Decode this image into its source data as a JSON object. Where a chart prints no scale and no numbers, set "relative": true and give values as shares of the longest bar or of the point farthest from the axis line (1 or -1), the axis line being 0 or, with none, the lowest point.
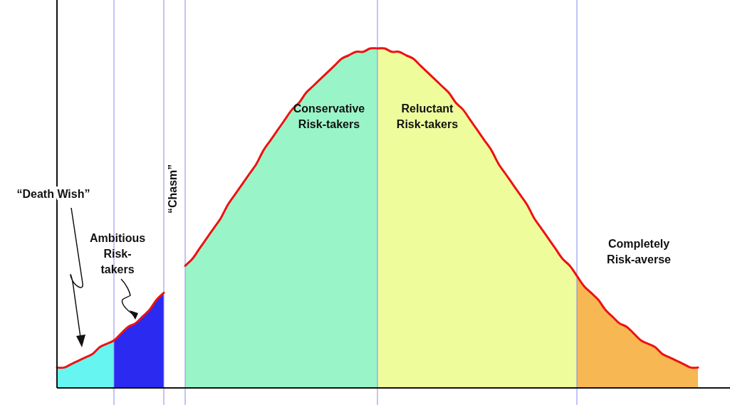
{
  "chart_data": {
    "type": "area",
    "relative": true,
    "categories": [
      null,
      null,
      null,
      null,
      null,
      null,
      null,
      null,
      null,
      null,
      null,
      null,
      null,
      null,
      null,
      null,
      null,
      null,
      null,
      null,
      null,
      null,
      null,
      null,
      null,
      null,
      null,
      null,
      null,
      null,
      null,
      null,
      null,
      null,
      null,
      null,
      null,
      null,
      null,
      null,
      null,
      null,
      null,
      null,
      null,
      null,
      null,
      null,
      null,
      null,
      null,
      null,
      null,
      null,
      null,
      null,
      null,
      null,
      null,
      null,
      null,
      null,
      null,
      null,
      null,
      null,
      null,
      null,
      null,
      null,
      null,
      null,
      null,
      null,
      null,
      null,
      null,
      null,
      null,
      null,
      null,
      null,
      null,
      null,
      null,
      null,
      null,
      null,
      null,
      null,
      null,
      null,
      null,
      null,
      null
    ],
    "series": [
      {
        "name": "“Death Wish”",
        "color": "#66f5f0",
        "values": [
          0.06,
          0.06,
          0.07,
          0.08,
          0.09,
          0.1,
          0.12,
          0.13,
          0.14,
          null,
          null,
          null,
          null,
          null,
          null,
          null,
          null,
          null,
          null,
          null,
          null,
          null,
          null,
          null,
          null,
          null,
          null,
          null,
          null,
          null,
          null,
          null,
          null,
          null,
          null,
          null,
          null,
          null,
          null,
          null,
          null,
          null,
          null,
          null,
          null,
          null,
          null,
          null,
          null,
          null,
          null,
          null,
          null,
          null,
          null,
          null,
          null,
          null,
          null,
          null,
          null,
          null,
          null,
          null,
          null,
          null,
          null,
          null,
          null,
          null,
          null,
          null,
          null,
          null,
          null,
          null,
          null,
          null,
          null,
          null,
          null,
          null,
          null,
          null,
          null,
          null,
          null,
          null,
          null,
          null,
          null,
          null,
          null,
          null,
          null
        ]
      },
      {
        "name": "Ambitious Risk-takers",
        "color": "#2a2af0",
        "values": [
          null,
          null,
          null,
          null,
          null,
          null,
          null,
          null,
          0.14,
          0.16,
          0.18,
          0.19,
          0.21,
          0.23,
          0.26,
          0.28,
          null,
          null,
          null,
          null,
          null,
          null,
          null,
          null,
          null,
          null,
          null,
          null,
          null,
          null,
          null,
          null,
          null,
          null,
          null,
          null,
          null,
          null,
          null,
          null,
          null,
          null,
          null,
          null,
          null,
          null,
          null,
          null,
          null,
          null,
          null,
          null,
          null,
          null,
          null,
          null,
          null,
          null,
          null,
          null,
          null,
          null,
          null,
          null,
          null,
          null,
          null,
          null,
          null,
          null,
          null,
          null,
          null,
          null,
          null,
          null,
          null,
          null,
          null,
          null,
          null,
          null,
          null,
          null,
          null,
          null,
          null,
          null,
          null,
          null,
          null,
          null,
          null,
          null,
          null
        ]
      },
      {
        "name": "Conservative Risk-takers",
        "color": "#99f5c8",
        "values": [
          null,
          null,
          null,
          null,
          null,
          null,
          null,
          null,
          null,
          null,
          null,
          null,
          null,
          null,
          null,
          null,
          null,
          null,
          0.36,
          0.38,
          0.41,
          0.44,
          0.47,
          0.5,
          0.54,
          0.57,
          0.6,
          0.63,
          0.66,
          0.7,
          0.73,
          0.76,
          0.79,
          0.82,
          0.84,
          0.87,
          0.89,
          0.91,
          0.93,
          0.95,
          0.97,
          0.98,
          0.99,
          0.99,
          1.0,
          1,
          null,
          null,
          null,
          null,
          null,
          null,
          null,
          null,
          null,
          null,
          null,
          null,
          null,
          null,
          null,
          null,
          null,
          null,
          null,
          null,
          null,
          null,
          null,
          null,
          null,
          null,
          null,
          null,
          null,
          null,
          null,
          null,
          null,
          null,
          null,
          null,
          null,
          null,
          null,
          null,
          null,
          null,
          null,
          null,
          null,
          null,
          null,
          null,
          null
        ]
      },
      {
        "name": "Reluctant Risk-takers",
        "color": "#eefc9c",
        "values": [
          null,
          null,
          null,
          null,
          null,
          null,
          null,
          null,
          null,
          null,
          null,
          null,
          null,
          null,
          null,
          null,
          null,
          null,
          null,
          null,
          null,
          null,
          null,
          null,
          null,
          null,
          null,
          null,
          null,
          null,
          null,
          null,
          null,
          null,
          null,
          null,
          null,
          null,
          null,
          null,
          null,
          null,
          null,
          null,
          null,
          1,
          1.0,
          0.99,
          0.99,
          0.98,
          0.97,
          0.95,
          0.93,
          0.91,
          0.89,
          0.87,
          0.84,
          0.82,
          0.79,
          0.76,
          0.73,
          0.7,
          0.66,
          0.63,
          0.6,
          0.57,
          0.54,
          0.5,
          0.47,
          0.44,
          0.41,
          0.38,
          0.36,
          0.33,
          null,
          null,
          null,
          null,
          null,
          null,
          null,
          null,
          null,
          null,
          null,
          null,
          null,
          null,
          null,
          null,
          null,
          null,
          null,
          null,
          null
        ]
      },
      {
        "name": "Completely Risk-averse",
        "color": "#f7b753",
        "values": [
          null,
          null,
          null,
          null,
          null,
          null,
          null,
          null,
          null,
          null,
          null,
          null,
          null,
          null,
          null,
          null,
          null,
          null,
          null,
          null,
          null,
          null,
          null,
          null,
          null,
          null,
          null,
          null,
          null,
          null,
          null,
          null,
          null,
          null,
          null,
          null,
          null,
          null,
          null,
          null,
          null,
          null,
          null,
          null,
          null,
          null,
          null,
          null,
          null,
          null,
          null,
          null,
          null,
          null,
          null,
          null,
          null,
          null,
          null,
          null,
          null,
          null,
          null,
          null,
          null,
          null,
          null,
          null,
          null,
          null,
          null,
          null,
          null,
          0.33,
          0.3,
          0.28,
          0.26,
          0.23,
          0.21,
          0.19,
          0.18,
          0.16,
          0.14,
          0.13,
          0.12,
          0.1,
          0.09,
          0.08,
          0.07,
          0.06,
          0.06,
          null,
          null,
          null,
          null
        ]
      },
      {
        "type": "line",
        "color": "#ee1111",
        "values": [
          0.06,
          0.06,
          0.07,
          0.08,
          0.09,
          0.1,
          0.12,
          0.13,
          0.14,
          0.16,
          0.18,
          0.19,
          0.21,
          0.23,
          0.26,
          0.28,
          null,
          null,
          0.36,
          0.38,
          0.41,
          0.44,
          0.47,
          0.5,
          0.54,
          0.57,
          0.6,
          0.63,
          0.66,
          0.7,
          0.73,
          0.76,
          0.79,
          0.82,
          0.84,
          0.87,
          0.89,
          0.91,
          0.93,
          0.95,
          0.97,
          0.98,
          0.99,
          0.99,
          1.0,
          1,
          1.0,
          0.99,
          0.99,
          0.98,
          0.97,
          0.95,
          0.93,
          0.91,
          0.89,
          0.87,
          0.84,
          0.82,
          0.79,
          0.76,
          0.73,
          0.7,
          0.66,
          0.63,
          0.6,
          0.57,
          0.54,
          0.5,
          0.47,
          0.44,
          0.41,
          0.38,
          0.36,
          0.33,
          0.3,
          0.28,
          0.26,
          0.23,
          0.21,
          0.19,
          0.18,
          0.16,
          0.14,
          0.13,
          0.12,
          0.1,
          0.09,
          0.08,
          0.07,
          0.06,
          0.06,
          null,
          null,
          null,
          null
        ]
      }
    ],
    "grid": "x",
    "annotations": [
      "“Chasm”"
    ]
  }
}
